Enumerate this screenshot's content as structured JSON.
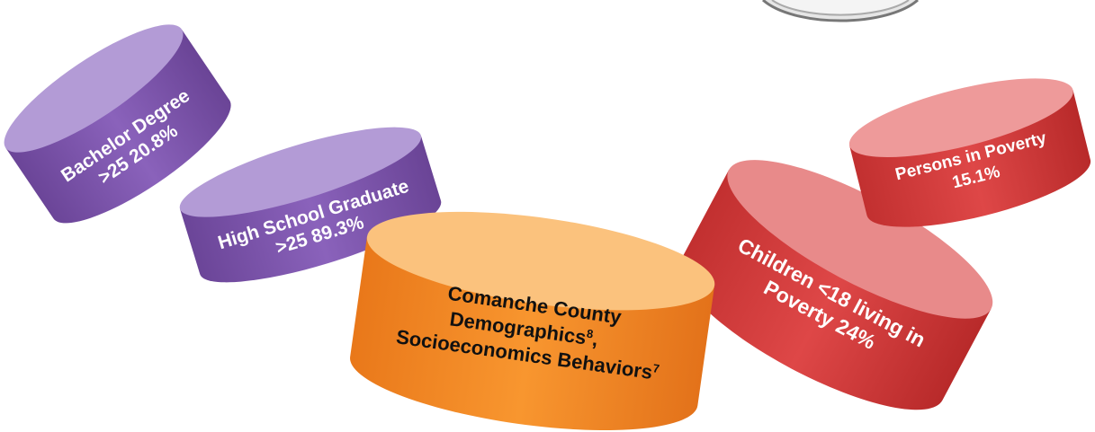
{
  "nodes": [
    {
      "lines": [
        "Bachelor Degree",
        ">25  20.8%"
      ]
    },
    {
      "lines": [
        "High School Graduate",
        ">25  89.3%"
      ]
    },
    {
      "lines": [
        "Comanche County",
        "Demographics",
        ",",
        "Socioeconomics Behaviors"
      ],
      "superscripts": [
        "8",
        "7"
      ]
    },
    {
      "lines": [
        "Children <18  living in",
        "Poverty 24%"
      ]
    },
    {
      "lines": [
        "Persons in Poverty",
        "15.1%"
      ]
    }
  ]
}
